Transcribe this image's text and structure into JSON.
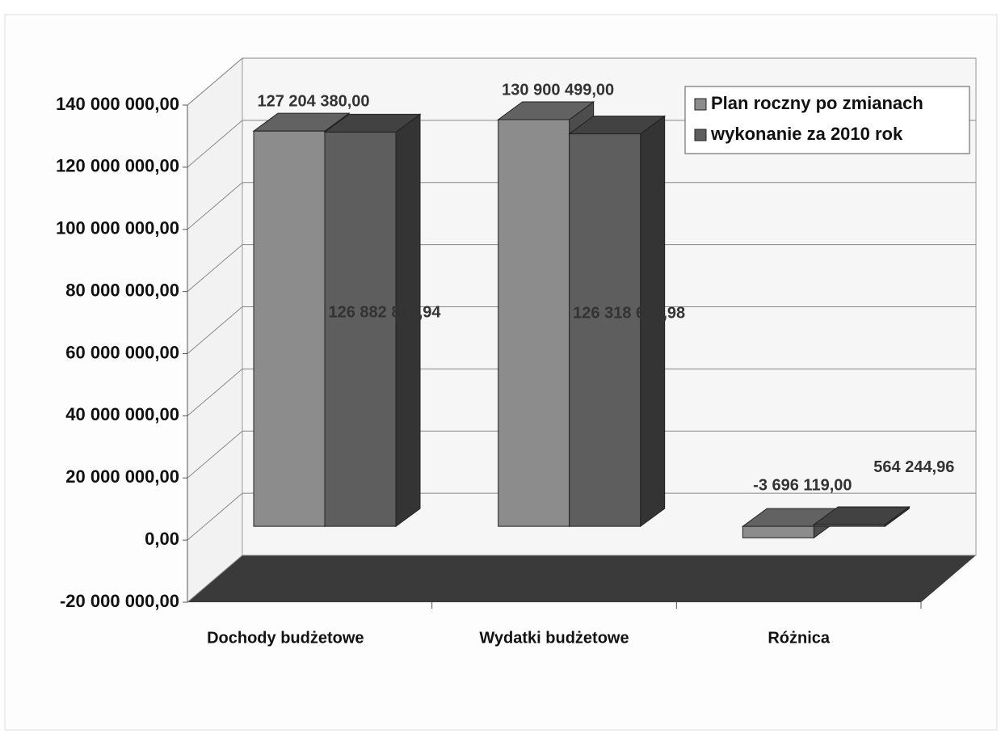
{
  "chart_data": {
    "type": "bar3d",
    "categories": [
      "Dochody budżetowe",
      "Wydatki budżetowe",
      "Różnica"
    ],
    "series": [
      {
        "name": "Plan roczny po zmianach",
        "color": "#8c8c8c",
        "values": [
          127204380.0,
          130900499.0,
          -3696119.0
        ],
        "value_labels": [
          "127 204 380,00",
          "130 900 499,00",
          "-3 696 119,00"
        ]
      },
      {
        "name": "wykonanie za 2010 rok",
        "color": "#5e5e5e",
        "values": [
          126882883.94,
          126318638.98,
          564244.96
        ],
        "value_labels": [
          "126 882 883,94",
          "126 318 638,98",
          "564 244,96"
        ]
      }
    ],
    "ylim": [
      -20000000,
      140000000
    ],
    "yticks": [
      {
        "value": 140000000,
        "label": "140 000 000,00"
      },
      {
        "value": 120000000,
        "label": "120 000 000,00"
      },
      {
        "value": 100000000,
        "label": "100 000 000,00"
      },
      {
        "value": 80000000,
        "label": "80 000 000,00"
      },
      {
        "value": 60000000,
        "label": "60 000 000,00"
      },
      {
        "value": 40000000,
        "label": "40 000 000,00"
      },
      {
        "value": 20000000,
        "label": "20 000 000,00"
      },
      {
        "value": 0,
        "label": "0,00"
      },
      {
        "value": -20000000,
        "label": "-20 000 000,00"
      }
    ],
    "grid": true,
    "legend": "top-right"
  }
}
